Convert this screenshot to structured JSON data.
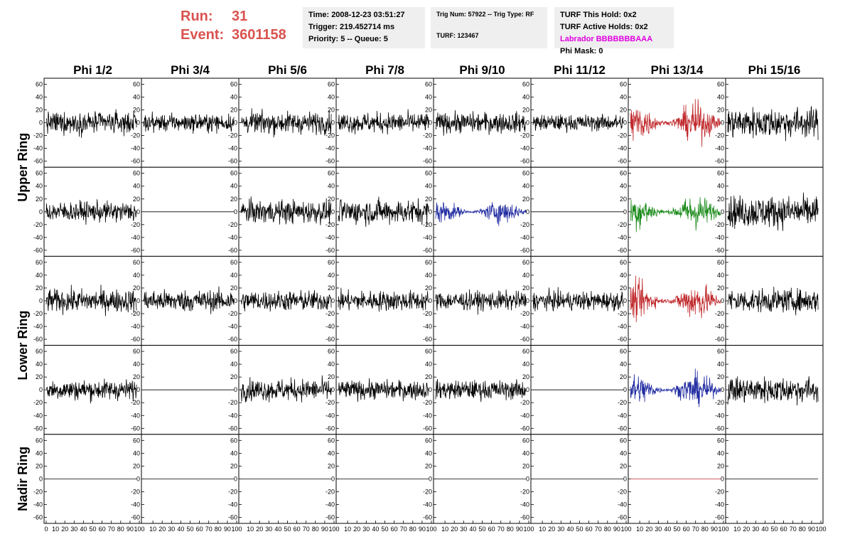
{
  "header": {
    "run_label": "Run:",
    "run_value": "31",
    "event_label": "Event:",
    "event_value": "3601158",
    "time": "Time: 2008-12-23 03:51:27",
    "trigger": "Trigger: 219.452714 ms",
    "priority": "Priority: 5 -- Queue: 5",
    "trig_num": "Trig Num: 57922 -- Trig Type: RF",
    "turf": "TURF: 123467",
    "turf_this_hold": "TURF This Hold: 0x2",
    "turf_active_holds": "TURF Active Holds: 0x2",
    "labrador": "Labrador BBBBBBBAAA",
    "phi_mask": "Phi Mask: 0"
  },
  "chart_data": {
    "type": "line",
    "columns": [
      "Phi 1/2",
      "Phi 3/4",
      "Phi 5/6",
      "Phi 7/8",
      "Phi 9/10",
      "Phi 11/12",
      "Phi 13/14",
      "Phi 15/16"
    ],
    "rings": [
      "Upper Ring",
      "Lower Ring",
      "Nadir Ring"
    ],
    "ylim": [
      -65,
      65
    ],
    "xlim": [
      0,
      100
    ],
    "y_ticks": [
      -60,
      -40,
      -20,
      0,
      20,
      40,
      60
    ],
    "x_ticks": [
      0,
      10,
      20,
      30,
      40,
      50,
      60,
      70,
      80,
      90,
      100
    ],
    "colors": {
      "black": "#000000",
      "red": "#c0282b",
      "blue": "#1f2aa0",
      "green": "#1a8a1a"
    },
    "rows": [
      {
        "ring": "Upper Ring",
        "cells": [
          {
            "amp": 15,
            "color": "black"
          },
          {
            "amp": 12,
            "color": "black"
          },
          {
            "amp": 15,
            "color": "black"
          },
          {
            "amp": 14,
            "color": "black"
          },
          {
            "amp": 14,
            "color": "black"
          },
          {
            "amp": 11,
            "color": "black"
          },
          {
            "amp": 25,
            "color": "red"
          },
          {
            "amp": 21,
            "color": "black"
          }
        ]
      },
      {
        "ring": "Upper Ring",
        "cells": [
          {
            "amp": 14,
            "color": "black"
          },
          {
            "amp": 0,
            "color": "black"
          },
          {
            "amp": 16,
            "color": "black"
          },
          {
            "amp": 17,
            "color": "black"
          },
          {
            "amp": 15,
            "color": "blue"
          },
          {
            "amp": 0,
            "color": "black"
          },
          {
            "amp": 22,
            "color": "green"
          },
          {
            "amp": 22,
            "color": "black"
          }
        ]
      },
      {
        "ring": "Lower Ring",
        "cells": [
          {
            "amp": 16,
            "color": "black"
          },
          {
            "amp": 15,
            "color": "black"
          },
          {
            "amp": 14,
            "color": "black"
          },
          {
            "amp": 14,
            "color": "black"
          },
          {
            "amp": 13,
            "color": "black"
          },
          {
            "amp": 13,
            "color": "black"
          },
          {
            "amp": 24,
            "color": "red"
          },
          {
            "amp": 16,
            "color": "black"
          }
        ]
      },
      {
        "ring": "Lower Ring",
        "cells": [
          {
            "amp": 14,
            "color": "black"
          },
          {
            "amp": 0,
            "color": "black"
          },
          {
            "amp": 15,
            "color": "black"
          },
          {
            "amp": 13,
            "color": "black"
          },
          {
            "amp": 13,
            "color": "black"
          },
          {
            "amp": 0,
            "color": "black"
          },
          {
            "amp": 20,
            "color": "blue"
          },
          {
            "amp": 18,
            "color": "black"
          }
        ]
      },
      {
        "ring": "Nadir Ring",
        "cells": [
          {
            "amp": 0,
            "color": "black"
          },
          {
            "amp": 0,
            "color": "black"
          },
          {
            "amp": 0,
            "color": "black"
          },
          {
            "amp": 0,
            "color": "black"
          },
          {
            "amp": 0,
            "color": "black"
          },
          {
            "amp": 0,
            "color": "black"
          },
          {
            "amp": 0,
            "color": "red"
          },
          {
            "amp": 0,
            "color": "black"
          }
        ]
      }
    ]
  }
}
